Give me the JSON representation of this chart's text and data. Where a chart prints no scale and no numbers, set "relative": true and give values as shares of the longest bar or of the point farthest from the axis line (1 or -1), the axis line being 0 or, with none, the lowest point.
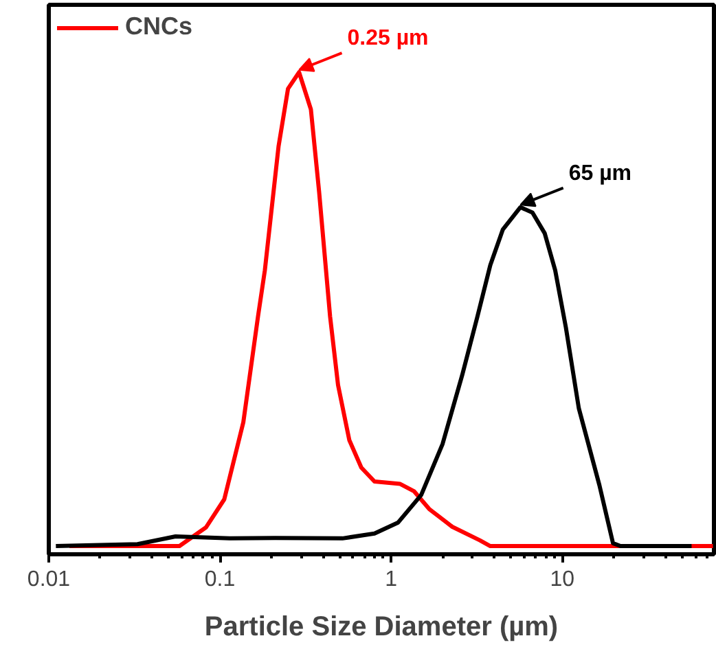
{
  "chart_data": {
    "type": "line",
    "xlabel": "Particle Size Diameter (µm)",
    "log": "x",
    "xlim": [
      0.01,
      77
    ],
    "xticks": [
      0.01,
      0.1,
      1,
      10
    ],
    "relative": true,
    "legend": "top left",
    "grid": false,
    "series": [
      {
        "name": "CNCs",
        "color": "#ff0000",
        "x": [
          0.0132,
          0.058,
          0.083,
          0.106,
          0.137,
          0.167,
          0.183,
          0.22,
          0.25,
          0.29,
          0.34,
          0.38,
          0.44,
          0.49,
          0.57,
          0.67,
          0.8,
          1.13,
          1.36,
          1.67,
          2.28,
          3.3,
          3.8,
          76
        ],
        "values": [
          0.017,
          0.017,
          0.056,
          0.114,
          0.274,
          0.494,
          0.589,
          0.846,
          0.966,
          1,
          0.923,
          0.751,
          0.494,
          0.351,
          0.237,
          0.18,
          0.151,
          0.146,
          0.131,
          0.094,
          0.057,
          0.029,
          0.017,
          0.017
        ]
      },
      {
        "color": "#000000",
        "x": [
          0.011,
          0.033,
          0.055,
          0.114,
          0.21,
          0.52,
          0.8,
          1.1,
          1.5,
          2.0,
          2.6,
          3.2,
          3.8,
          4.5,
          5.7,
          6.7,
          7.9,
          9.1,
          10.5,
          12.5,
          16.5,
          19.8,
          21.9,
          57
        ],
        "values": [
          0.017,
          0.021,
          0.037,
          0.033,
          0.034,
          0.033,
          0.043,
          0.066,
          0.123,
          0.229,
          0.371,
          0.494,
          0.6,
          0.674,
          0.72,
          0.709,
          0.666,
          0.589,
          0.471,
          0.303,
          0.143,
          0.023,
          0.017,
          0.017
        ]
      }
    ],
    "annotations": [
      {
        "text": "0.25 µm",
        "x": 0.29,
        "y": 1
      },
      {
        "text": "65 µm",
        "x": 5.7,
        "y": 0.72
      }
    ]
  }
}
